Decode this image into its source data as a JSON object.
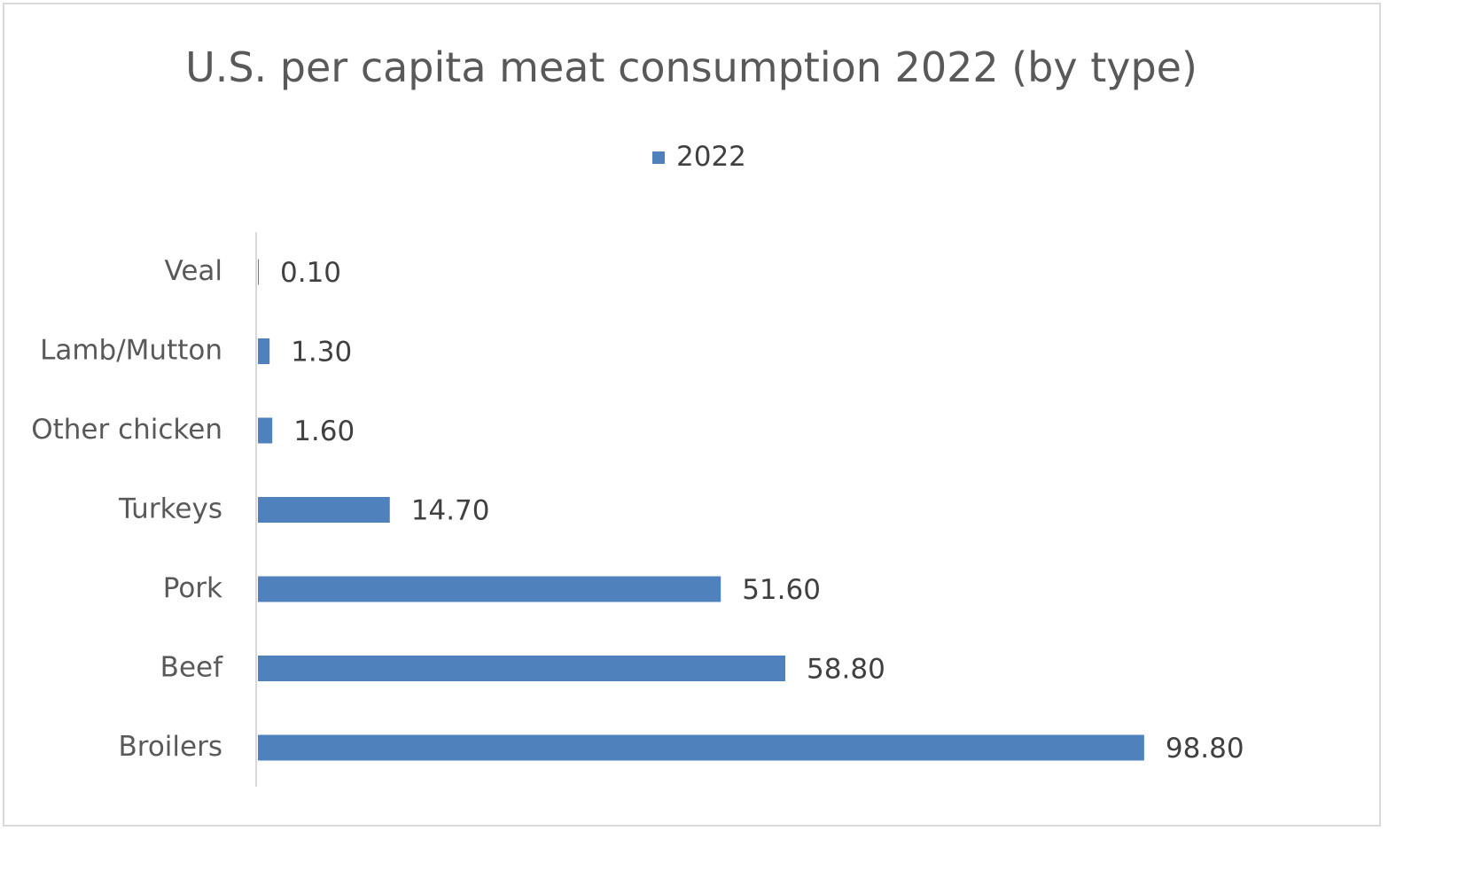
{
  "chart_data": {
    "type": "bar",
    "orientation": "horizontal",
    "title": "U.S. per capita meat consumption 2022 (by type)",
    "categories": [
      "Veal",
      "Lamb/Mutton",
      "Other chicken",
      "Turkeys",
      "Pork",
      "Beef",
      "Broilers"
    ],
    "series": [
      {
        "name": "2022",
        "values": [
          0.1,
          1.3,
          1.6,
          14.7,
          51.6,
          58.8,
          98.8
        ],
        "labels": [
          "0.10",
          "1.30",
          "1.60",
          "14.70",
          "51.60",
          "58.80",
          "98.80"
        ]
      }
    ],
    "xlabel": "",
    "ylabel": "",
    "xlim": [
      0,
      100
    ],
    "grid": false,
    "legend_position": "top-center",
    "colors": {
      "bar": "#4f81bd",
      "axis": "#d9d9d9"
    }
  }
}
